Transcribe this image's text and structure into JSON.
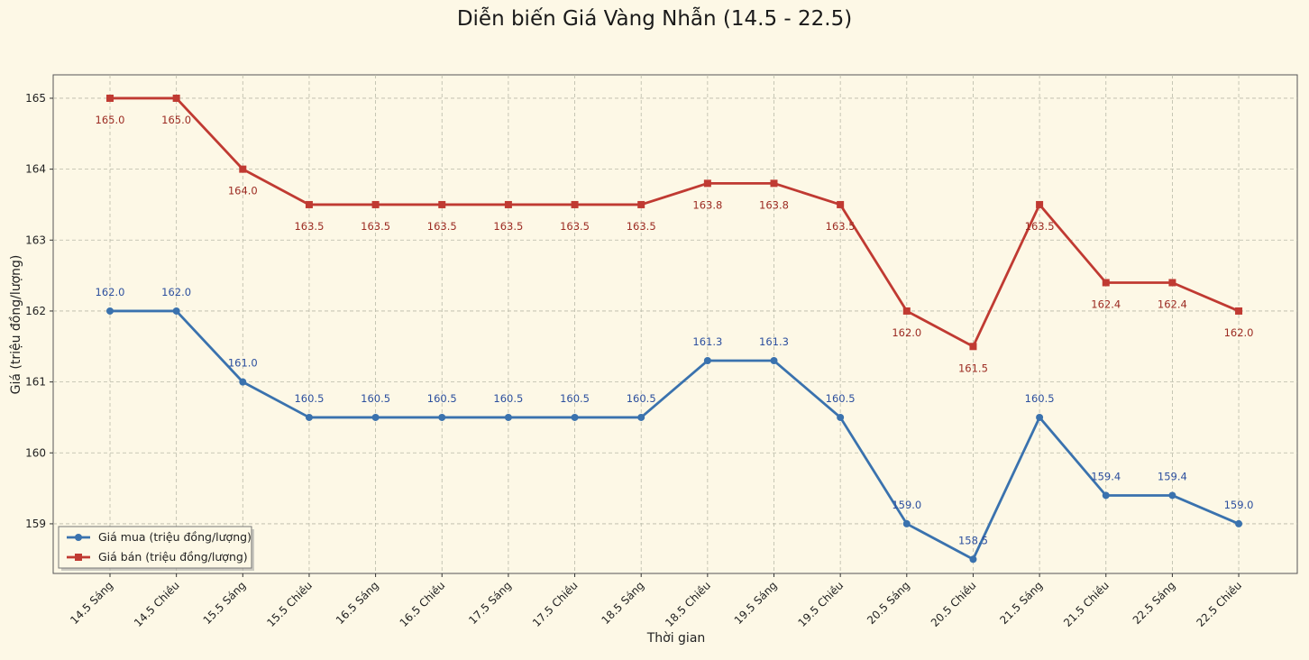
{
  "chart_data": {
    "type": "line",
    "title": "Diễn biến Giá Vàng Nhẫn (14.5 - 22.5)",
    "xlabel": "Thời gian",
    "ylabel": "Giá (triệu đồng/lượng)",
    "ylim": [
      158.3,
      165.33
    ],
    "yticks": [
      159,
      160,
      161,
      162,
      163,
      164,
      165
    ],
    "grid": true,
    "legend_position": "lower-left",
    "categories": [
      "14.5 Sáng",
      "14.5 Chiều",
      "15.5 Sáng",
      "15.5 Chiều",
      "16.5 Sáng",
      "16.5 Chiều",
      "17.5 Sáng",
      "17.5 Chiều",
      "18.5 Sáng",
      "18.5 Chiều",
      "19.5 Sáng",
      "19.5 Chiều",
      "20.5 Sáng",
      "20.5 Chiều",
      "21.5 Sáng",
      "21.5 Chiều",
      "22.5 Sáng",
      "22.5 Chiều"
    ],
    "series": [
      {
        "name": "Giá mua (triệu đồng/lượng)",
        "color": "#3a72ae",
        "marker": "circle",
        "values": [
          162.0,
          162.0,
          161.0,
          160.5,
          160.5,
          160.5,
          160.5,
          160.5,
          160.5,
          161.3,
          161.3,
          160.5,
          159.0,
          158.5,
          160.5,
          159.4,
          159.4,
          159.0
        ],
        "labels": [
          "162.0",
          "162.0",
          "161.0",
          "160.5",
          "160.5",
          "160.5",
          "160.5",
          "160.5",
          "160.5",
          "161.3",
          "161.3",
          "160.5",
          "159.0",
          "158.5",
          "160.5",
          "159.4",
          "159.4",
          "159.0"
        ]
      },
      {
        "name": "Giá bán (triệu đồng/lượng)",
        "color": "#c03a32",
        "marker": "square",
        "values": [
          165.0,
          165.0,
          164.0,
          163.5,
          163.5,
          163.5,
          163.5,
          163.5,
          163.5,
          163.8,
          163.8,
          163.5,
          162.0,
          161.5,
          163.5,
          162.4,
          162.4,
          162.0
        ],
        "labels": [
          "165.0",
          "165.0",
          "164.0",
          "163.5",
          "163.5",
          "163.5",
          "163.5",
          "163.5",
          "163.5",
          "163.8",
          "163.8",
          "163.5",
          "162.0",
          "161.5",
          "163.5",
          "162.4",
          "162.4",
          "162.0"
        ]
      }
    ]
  }
}
